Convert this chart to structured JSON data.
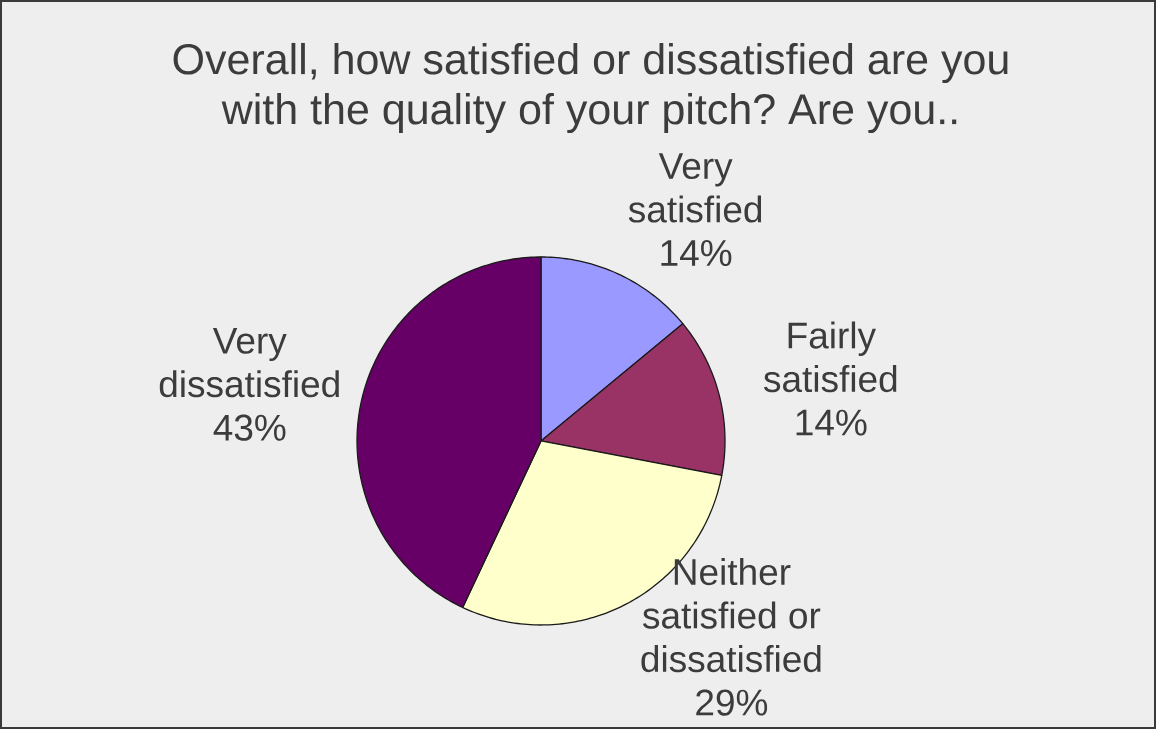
{
  "chart_data": {
    "type": "pie",
    "title": "Overall, how satisfied or dissatisfied are you with the quality of your pitch? Are you..",
    "categories": [
      "Very satisfied",
      "Fairly satisfied",
      "Neither satisfied or dissatisfied",
      "Very dissatisfied"
    ],
    "values": [
      14,
      14,
      29,
      43
    ],
    "colors": [
      "#9999ff",
      "#993366",
      "#ffffcc",
      "#660066"
    ],
    "value_labels": [
      "14%",
      "14%",
      "29%",
      "43%"
    ]
  }
}
